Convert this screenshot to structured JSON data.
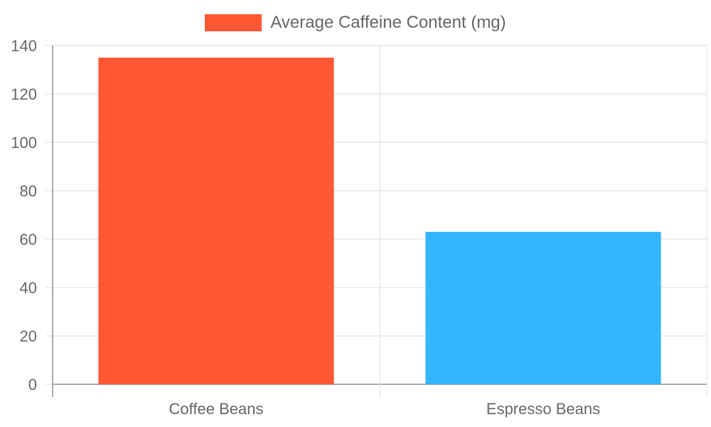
{
  "chart_data": {
    "type": "bar",
    "title": "",
    "categories": [
      "Coffee Beans",
      "Espresso Beans"
    ],
    "series": [
      {
        "name": "Average Caffeine Content (mg)",
        "values": [
          135,
          63
        ]
      }
    ],
    "bar_colors": [
      "#FF5733",
      "#33B5FF"
    ],
    "xlabel": "",
    "ylabel": "",
    "ylim": [
      0,
      140
    ],
    "yticks": [
      0,
      20,
      40,
      60,
      80,
      100,
      120,
      140
    ],
    "grid": true,
    "legend_position": "top"
  },
  "legend": {
    "label": "Average Caffeine Content (mg)",
    "color": "#FF5733"
  }
}
